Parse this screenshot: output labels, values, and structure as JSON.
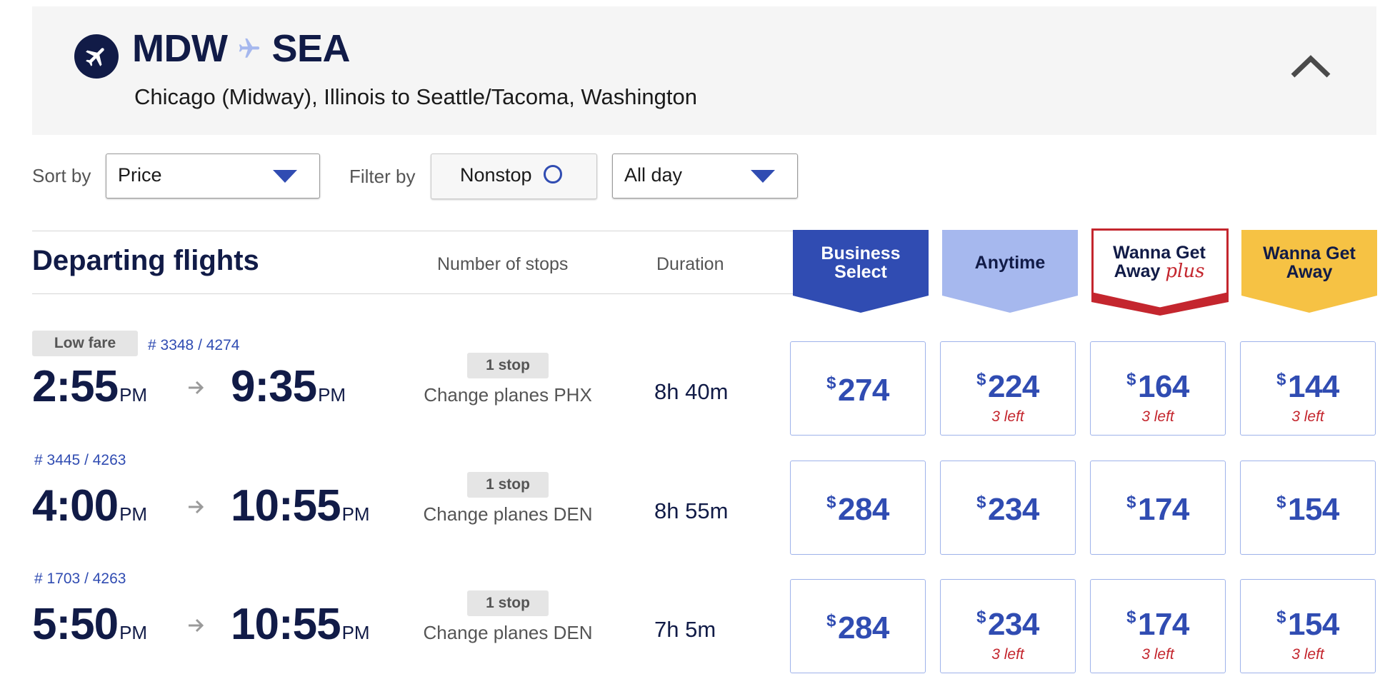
{
  "header": {
    "origin": "MDW",
    "destination": "SEA",
    "description": "Chicago (Midway), Illinois to Seattle/Tacoma, Washington",
    "icons": {
      "plane": "airplane-icon",
      "separator": "plane-separator-icon",
      "collapse": "chevron-up-icon"
    }
  },
  "controls": {
    "sort_label": "Sort by",
    "sort_value": "Price",
    "filter_label": "Filter by",
    "nonstop_label": "Nonstop",
    "time_value": "All day"
  },
  "columns": {
    "title": "Departing flights",
    "stops": "Number of stops",
    "duration": "Duration",
    "fares": [
      {
        "line1": "Business",
        "line2": "Select",
        "color": "#304cb2",
        "text_color": "#ffffff"
      },
      {
        "line1": "Anytime",
        "line2": "",
        "color": "#a6b8ee",
        "text_color": "#111b47"
      },
      {
        "line1": "Wanna Get",
        "line2": "Away",
        "plus": "plus",
        "color": "#ffffff",
        "border": "#c4262e",
        "text_color": "#111b47"
      },
      {
        "line1": "Wanna Get",
        "line2": "Away",
        "color": "#f6c244",
        "text_color": "#111b47"
      }
    ]
  },
  "flights": [
    {
      "badge": "Low fare",
      "flight_number": "# 3348 / 4274",
      "depart_time": "2:55",
      "depart_ampm": "PM",
      "arrive_time": "9:35",
      "arrive_ampm": "PM",
      "stops": "1 stop",
      "change": "Change planes PHX",
      "duration": "8h 40m",
      "prices": [
        {
          "currency": "$",
          "amount": "274",
          "note": ""
        },
        {
          "currency": "$",
          "amount": "224",
          "note": "3 left"
        },
        {
          "currency": "$",
          "amount": "164",
          "note": "3 left"
        },
        {
          "currency": "$",
          "amount": "144",
          "note": "3 left"
        }
      ]
    },
    {
      "badge": "",
      "flight_number": "# 3445 / 4263",
      "depart_time": "4:00",
      "depart_ampm": "PM",
      "arrive_time": "10:55",
      "arrive_ampm": "PM",
      "stops": "1 stop",
      "change": "Change planes DEN",
      "duration": "8h 55m",
      "prices": [
        {
          "currency": "$",
          "amount": "284",
          "note": ""
        },
        {
          "currency": "$",
          "amount": "234",
          "note": ""
        },
        {
          "currency": "$",
          "amount": "174",
          "note": ""
        },
        {
          "currency": "$",
          "amount": "154",
          "note": ""
        }
      ]
    },
    {
      "badge": "",
      "flight_number": "# 1703 / 4263",
      "depart_time": "5:50",
      "depart_ampm": "PM",
      "arrive_time": "10:55",
      "arrive_ampm": "PM",
      "stops": "1 stop",
      "change": "Change planes DEN",
      "duration": "7h 5m",
      "prices": [
        {
          "currency": "$",
          "amount": "284",
          "note": ""
        },
        {
          "currency": "$",
          "amount": "234",
          "note": "3 left"
        },
        {
          "currency": "$",
          "amount": "174",
          "note": "3 left"
        },
        {
          "currency": "$",
          "amount": "154",
          "note": "3 left"
        }
      ]
    }
  ]
}
